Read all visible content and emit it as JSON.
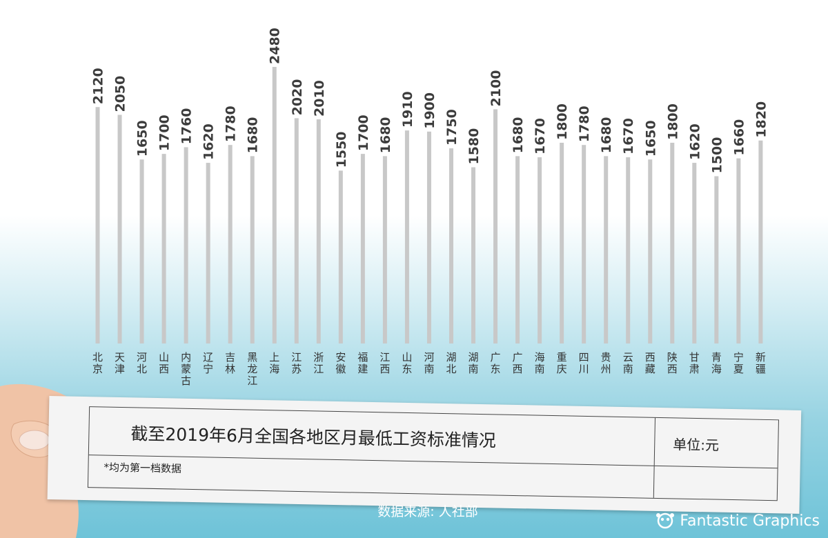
{
  "chart_data": {
    "type": "bar",
    "title": "截至2019年6月全国各地区月最低工资标准情况",
    "unit_label": "单位:元",
    "note": "*均为第一档数据",
    "categories": [
      "北京",
      "天津",
      "河北",
      "山西",
      "内蒙古",
      "辽宁",
      "吉林",
      "黑龙江",
      "上海",
      "江苏",
      "浙江",
      "安徽",
      "福建",
      "江西",
      "山东",
      "河南",
      "湖北",
      "湖南",
      "广东",
      "广西",
      "海南",
      "重庆",
      "四川",
      "贵州",
      "云南",
      "西藏",
      "陕西",
      "甘肃",
      "青海",
      "宁夏",
      "新疆"
    ],
    "values": [
      2120,
      2050,
      1650,
      1700,
      1760,
      1620,
      1780,
      1680,
      2480,
      2020,
      2010,
      1550,
      1700,
      1680,
      1910,
      1900,
      1750,
      1580,
      2100,
      1680,
      1670,
      1800,
      1780,
      1680,
      1670,
      1650,
      1800,
      1620,
      1500,
      1660,
      1820
    ],
    "colors": {
      "bar": "#c8c8c8",
      "value_text": "#3c3c3c"
    }
  },
  "footer": {
    "source": "数据来源: 人社部",
    "brand": "Fantastic Graphics"
  }
}
